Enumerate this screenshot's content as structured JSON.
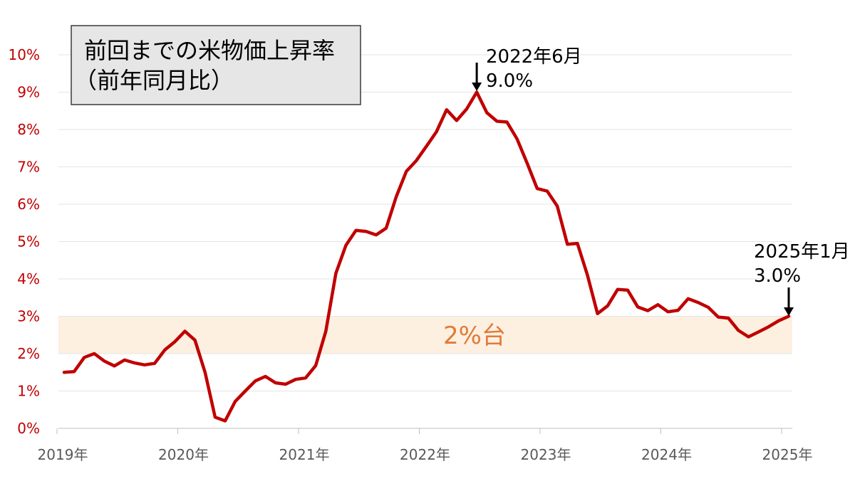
{
  "chart_data": {
    "type": "line",
    "title": "前回までの米物価上昇率",
    "subtitle": "（前年同月比）",
    "xlabel": "",
    "ylabel": "",
    "ylim": [
      0,
      10
    ],
    "y_ticks": [
      "0%",
      "1%",
      "2%",
      "3%",
      "4%",
      "5%",
      "6%",
      "7%",
      "8%",
      "9%",
      "10%"
    ],
    "x_ticks": [
      "2019年",
      "2020年",
      "2021年",
      "2022年",
      "2023年",
      "2024年",
      "2025年"
    ],
    "grid": true,
    "band": {
      "from": 2,
      "to": 3,
      "label": "2%台",
      "color": "#fdf0e1",
      "label_color": "#e07b39"
    },
    "series": [
      {
        "color": "#c00000",
        "x": [
          "2019-01",
          "2019-02",
          "2019-03",
          "2019-04",
          "2019-05",
          "2019-06",
          "2019-07",
          "2019-08",
          "2019-09",
          "2019-10",
          "2019-11",
          "2019-12",
          "2020-01",
          "2020-02",
          "2020-03",
          "2020-04",
          "2020-05",
          "2020-06",
          "2020-07",
          "2020-08",
          "2020-09",
          "2020-10",
          "2020-11",
          "2020-12",
          "2021-01",
          "2021-02",
          "2021-03",
          "2021-04",
          "2021-05",
          "2021-06",
          "2021-07",
          "2021-08",
          "2021-09",
          "2021-10",
          "2021-11",
          "2021-12",
          "2022-01",
          "2022-02",
          "2022-03",
          "2022-04",
          "2022-05",
          "2022-06",
          "2022-07",
          "2022-08",
          "2022-09",
          "2022-10",
          "2022-11",
          "2022-12",
          "2023-01",
          "2023-02",
          "2023-03",
          "2023-04",
          "2023-05",
          "2023-06",
          "2023-07",
          "2023-08",
          "2023-09",
          "2023-10",
          "2023-11",
          "2023-12",
          "2024-01",
          "2024-02",
          "2024-03",
          "2024-04",
          "2024-05",
          "2024-06",
          "2024-07",
          "2024-08",
          "2024-09",
          "2024-10",
          "2024-11",
          "2024-12",
          "2025-01"
        ],
        "values": [
          1.5,
          1.52,
          1.9,
          2.0,
          1.8,
          1.67,
          1.83,
          1.75,
          1.7,
          1.74,
          2.1,
          2.32,
          2.6,
          2.36,
          1.5,
          0.3,
          0.2,
          0.72,
          1.0,
          1.27,
          1.39,
          1.22,
          1.18,
          1.31,
          1.35,
          1.68,
          2.6,
          4.15,
          4.9,
          5.3,
          5.27,
          5.18,
          5.36,
          6.2,
          6.88,
          7.17,
          7.55,
          7.94,
          8.53,
          8.24,
          8.55,
          9.0,
          8.45,
          8.22,
          8.2,
          7.75,
          7.1,
          6.42,
          6.35,
          5.95,
          4.93,
          4.95,
          4.1,
          3.07,
          3.28,
          3.72,
          3.7,
          3.25,
          3.15,
          3.31,
          3.12,
          3.16,
          3.47,
          3.37,
          3.24,
          2.98,
          2.95,
          2.62,
          2.45,
          2.58,
          2.72,
          2.88,
          3.0
        ]
      }
    ],
    "annotations": [
      {
        "x": "2022-06",
        "value": 9.0,
        "lines": [
          "2022年6月",
          "9.0%"
        ]
      },
      {
        "x": "2025-01",
        "value": 3.0,
        "lines": [
          "2025年1月",
          "3.0%"
        ]
      }
    ]
  },
  "colors": {
    "line": "#c00000",
    "ytick": "#c00000",
    "xtick": "#595959",
    "grid": "#e3e3e3",
    "title_box_fill": "#e6e6e6",
    "title_box_border": "#3a3a3a",
    "arrow": "#000000"
  }
}
